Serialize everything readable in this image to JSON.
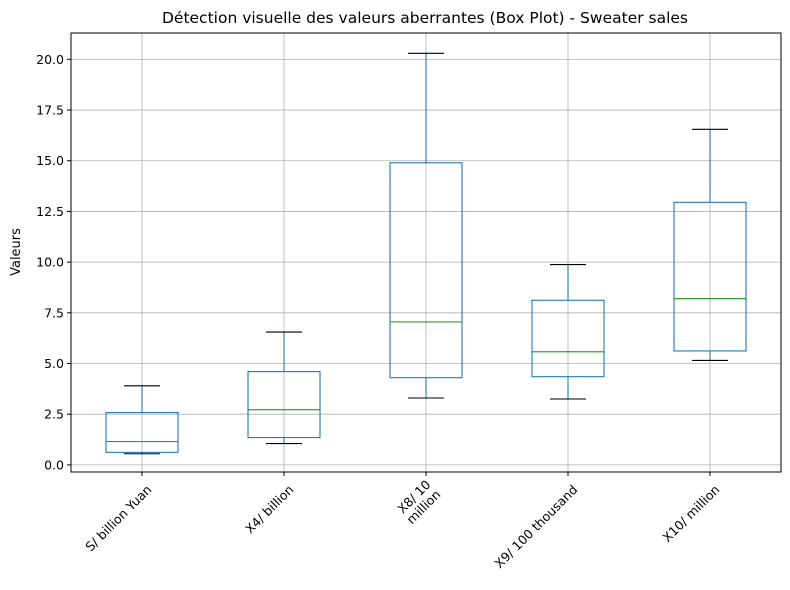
{
  "chart_data": {
    "type": "box",
    "title": "Détection visuelle des valeurs aberrantes (Box Plot) - Sweater sales",
    "xlabel": "",
    "ylabel": "Valeurs",
    "ylim": [
      -0.35,
      21.3
    ],
    "yticks": [
      "0.0",
      "2.5",
      "5.0",
      "7.5",
      "10.0",
      "12.5",
      "15.0",
      "17.5",
      "20.0"
    ],
    "grid": true,
    "categories": [
      [
        "S/ billion Yuan"
      ],
      [
        "X4/ billion"
      ],
      [
        "X8/ 10",
        "million"
      ],
      [
        "X9/ 100 thousand"
      ],
      [
        "X10/ million"
      ]
    ],
    "boxes": [
      {
        "whislo": 0.55,
        "q1": 0.62,
        "med": 1.15,
        "q3": 2.58,
        "whishi": 3.9
      },
      {
        "whislo": 1.05,
        "q1": 1.35,
        "med": 2.72,
        "q3": 4.6,
        "whishi": 6.55
      },
      {
        "whislo": 3.3,
        "q1": 4.3,
        "med": 7.05,
        "q3": 14.9,
        "whishi": 20.3
      },
      {
        "whislo": 3.25,
        "q1": 4.35,
        "med": 5.58,
        "q3": 8.12,
        "whishi": 9.88
      },
      {
        "whislo": 5.15,
        "q1": 5.62,
        "med": 8.2,
        "q3": 12.95,
        "whishi": 16.55
      }
    ],
    "colors": {
      "box": "#1f77b4",
      "median": "#2ca02c",
      "cap": "#000000",
      "grid": "#b0b0b0"
    }
  }
}
